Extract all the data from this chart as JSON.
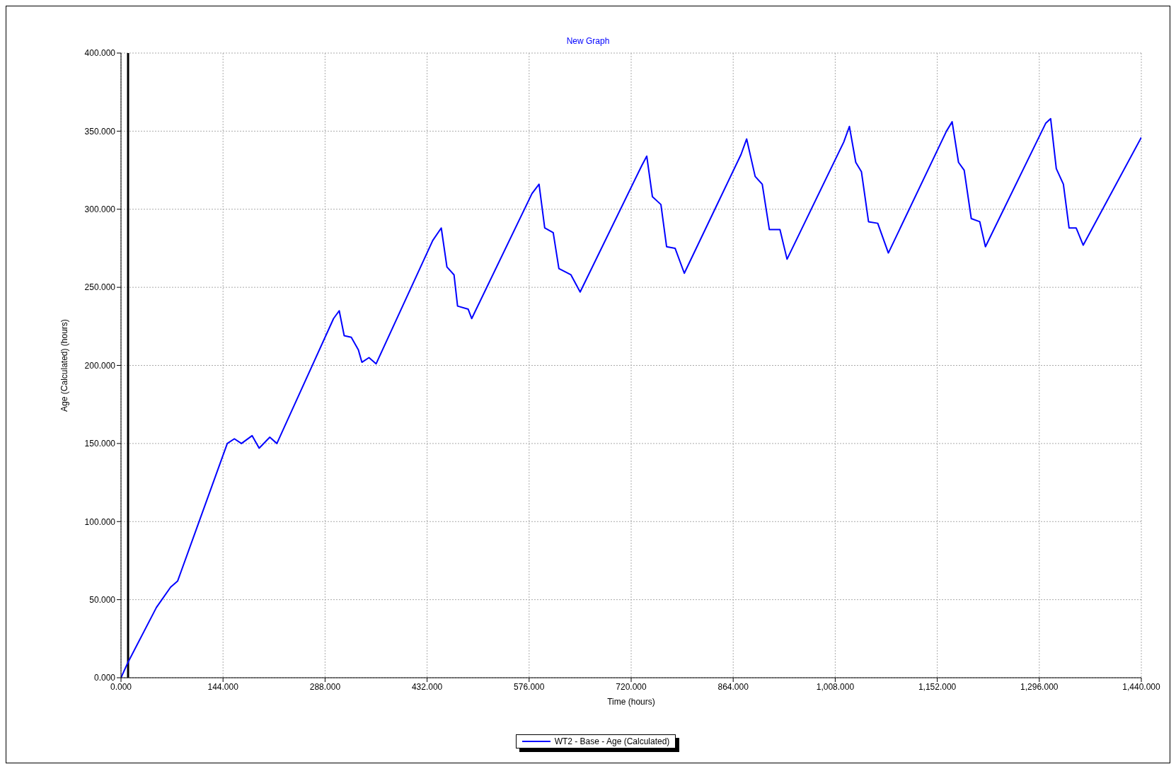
{
  "chart_data": {
    "type": "line",
    "title": "New Graph",
    "xlabel": "Time (hours)",
    "ylabel": "Age (Calculated) (hours)",
    "xlim": [
      0,
      1440
    ],
    "xticks": [
      {
        "value": 0,
        "label": "0.000"
      },
      {
        "value": 144,
        "label": "144.000"
      },
      {
        "value": 288,
        "label": "288.000"
      },
      {
        "value": 432,
        "label": "432.000"
      },
      {
        "value": 576,
        "label": "576.000"
      },
      {
        "value": 720,
        "label": "720.000"
      },
      {
        "value": 864,
        "label": "864.000"
      },
      {
        "value": 1008,
        "label": "1,008.000"
      },
      {
        "value": 1152,
        "label": "1,152.000"
      },
      {
        "value": 1296,
        "label": "1,296.000"
      },
      {
        "value": 1440,
        "label": "1,440.000"
      }
    ],
    "ylim": [
      0,
      400
    ],
    "yticks": [
      {
        "value": 0,
        "label": "0.000"
      },
      {
        "value": 50,
        "label": "50.000"
      },
      {
        "value": 100,
        "label": "100.000"
      },
      {
        "value": 150,
        "label": "150.000"
      },
      {
        "value": 200,
        "label": "200.000"
      },
      {
        "value": 250,
        "label": "250.000"
      },
      {
        "value": 300,
        "label": "300.000"
      },
      {
        "value": 350,
        "label": "350.000"
      },
      {
        "value": 400,
        "label": "400.000"
      }
    ],
    "grid": true,
    "legend": "bottom",
    "marker": "none",
    "line_style": "solid",
    "ref_lines": [
      {
        "axis": "x",
        "value": 10,
        "color": "#000000"
      }
    ],
    "series": [
      {
        "name": "WT2 - Base - Age (Calculated)",
        "color": "#0000ff",
        "x": [
          0,
          10,
          50,
          70,
          80,
          150,
          160,
          170,
          185,
          195,
          210,
          220,
          300,
          308,
          315,
          325,
          335,
          340,
          350,
          360,
          440,
          452,
          460,
          470,
          475,
          490,
          495,
          580,
          590,
          598,
          610,
          618,
          635,
          648,
          735,
          742,
          750,
          762,
          770,
          782,
          795,
          875,
          883,
          895,
          905,
          915,
          930,
          940,
          1020,
          1028,
          1037,
          1045,
          1055,
          1068,
          1083,
          1165,
          1173,
          1182,
          1190,
          1200,
          1212,
          1220,
          1305,
          1312,
          1320,
          1330,
          1338,
          1348,
          1358,
          1440
        ],
        "values": [
          0,
          10,
          45,
          58,
          62,
          150,
          153,
          150,
          155,
          147,
          154,
          150,
          230,
          235,
          219,
          218,
          210,
          202,
          205,
          201,
          280,
          288,
          263,
          258,
          238,
          236,
          230,
          310,
          316,
          288,
          285,
          262,
          258,
          247,
          328,
          334,
          308,
          303,
          276,
          275,
          259,
          335,
          345,
          321,
          316,
          287,
          287,
          268,
          343,
          353,
          330,
          324,
          292,
          291,
          272,
          350,
          356,
          330,
          325,
          294,
          292,
          276,
          355,
          358,
          326,
          316,
          288,
          288,
          277,
          346
        ]
      }
    ]
  }
}
